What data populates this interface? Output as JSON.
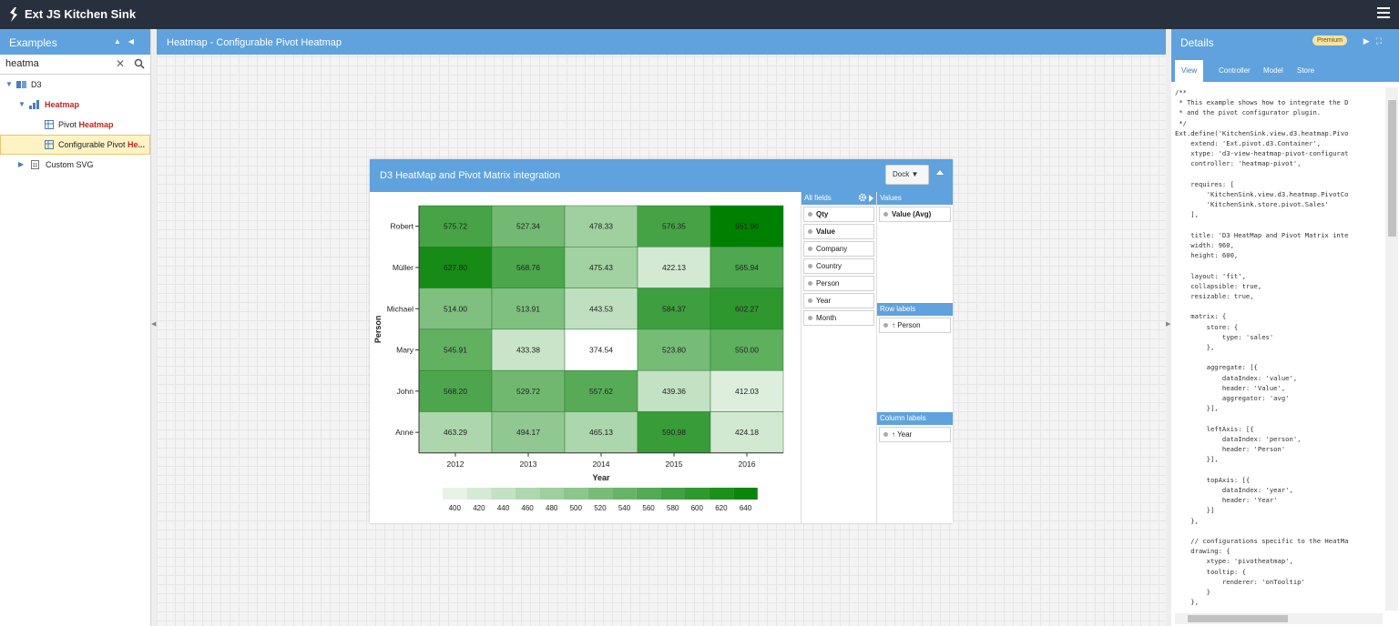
{
  "app": {
    "title": "Ext JS Kitchen Sink"
  },
  "examples": {
    "title": "Examples",
    "search_value": "heatma",
    "tree": [
      {
        "label": "D3",
        "level": 0,
        "expanded": true
      },
      {
        "label": "Heatmap",
        "level": 1,
        "expanded": true,
        "highlight": true
      },
      {
        "label_prefix": "Pivot ",
        "label_match": "Heatmap",
        "level": 2
      },
      {
        "label_prefix": "Configurable Pivot ",
        "label_match": "He...",
        "level": 2,
        "selected": true
      },
      {
        "label": "Custom SVG",
        "level": 1,
        "expanded": false
      }
    ]
  },
  "center": {
    "title": "Heatmap - Configurable Pivot Heatmap"
  },
  "window": {
    "title": "D3 HeatMap and Pivot Matrix integration",
    "dock_label": "Dock"
  },
  "configurator": {
    "all_fields_title": "All fields",
    "values_title": "Values",
    "row_labels_title": "Row labels",
    "column_labels_title": "Column labels",
    "fields": [
      {
        "label": "Qty",
        "bold": true
      },
      {
        "label": "Value",
        "bold": true
      },
      {
        "label": "Company",
        "bold": false
      },
      {
        "label": "Country",
        "bold": false
      },
      {
        "label": "Person",
        "bold": false
      },
      {
        "label": "Year",
        "bold": false
      },
      {
        "label": "Month",
        "bold": false
      }
    ],
    "values": [
      "Value (Avg)"
    ],
    "row_labels": [
      "↑ Person"
    ],
    "column_labels": [
      "↑ Year"
    ]
  },
  "chart_data": {
    "type": "heatmap",
    "xlabel": "Year",
    "ylabel": "Person",
    "x": [
      "2012",
      "2013",
      "2014",
      "2015",
      "2016"
    ],
    "y": [
      "Robert",
      "Müller",
      "Michael",
      "Mary",
      "John",
      "Anne"
    ],
    "values": [
      [
        575.72,
        527.34,
        478.33,
        576.35,
        651.96
      ],
      [
        627.8,
        568.76,
        475.43,
        422.13,
        565.94
      ],
      [
        514.0,
        513.91,
        443.53,
        584.37,
        602.27
      ],
      [
        545.91,
        433.38,
        374.54,
        523.8,
        550.0
      ],
      [
        568.2,
        529.72,
        557.62,
        439.36,
        412.03
      ],
      [
        463.29,
        494.17,
        465.13,
        590.98,
        424.18
      ]
    ],
    "legend_ticks": [
      400,
      420,
      440,
      460,
      480,
      500,
      520,
      540,
      560,
      580,
      600,
      620,
      640
    ],
    "color_min": "#ffffff",
    "color_max": "#008000",
    "value_min": 374.54,
    "value_max": 651.96
  },
  "details": {
    "title": "Details",
    "badge": "Premium",
    "tabs": [
      "View",
      "Controller",
      "Model",
      "Store"
    ],
    "active_tab": "View",
    "code": "/**\n * This example shows how to integrate the D\n * and the pivot configurator plugin.\n */\nExt.define('KitchenSink.view.d3.heatmap.Pivo\n    extend: 'Ext.pivot.d3.Container',\n    xtype: 'd3-view-heatmap-pivot-configurat\n    controller: 'heatmap-pivot',\n\n    requires: [\n        'KitchenSink.view.d3.heatmap.PivotCo\n        'KitchenSink.store.pivot.Sales'\n    ],\n\n    title: 'D3 HeatMap and Pivot Matrix inte\n    width: 960,\n    height: 600,\n\n    layout: 'fit',\n    collapsible: true,\n    resizable: true,\n\n    matrix: {\n        store: {\n            type: 'sales'\n        },\n\n        aggregate: [{\n            dataIndex: 'value',\n            header: 'Value',\n            aggregator: 'avg'\n        }],\n\n        leftAxis: [{\n            dataIndex: 'person',\n            header: 'Person'\n        }],\n\n        topAxis: [{\n            dataIndex: 'year',\n            header: 'Year'\n        }]\n    },\n\n    // configurations specific to the HeatMa\n    drawing: {\n        xtype: 'pivotheatmap',\n        tooltip: {\n            renderer: 'onTooltip'\n        }\n    },"
  }
}
